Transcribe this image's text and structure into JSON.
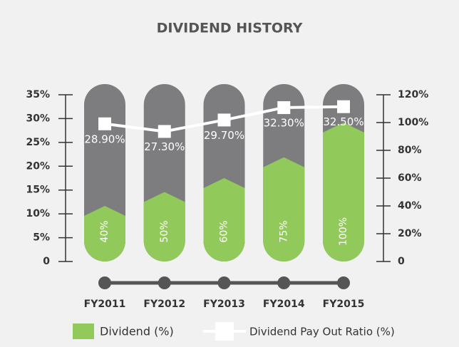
{
  "chart_data": {
    "type": "bar-line",
    "title": "DIVIDEND HISTORY",
    "categories": [
      "FY2011",
      "FY2012",
      "FY2013",
      "FY2014",
      "FY2015"
    ],
    "series": [
      {
        "name": "Dividend (%)",
        "type": "bar",
        "axis": "y2",
        "color": "#92c95b",
        "values": [
          40,
          50,
          60,
          75,
          100
        ],
        "value_labels": [
          "40%",
          "50%",
          "60%",
          "75%",
          "100%"
        ]
      },
      {
        "name": "Dividend Pay Out Ratio (%)",
        "type": "line",
        "axis": "y",
        "color": "#ffffff",
        "values": [
          28.9,
          27.3,
          29.7,
          32.3,
          32.5
        ],
        "value_labels": [
          "28.90%",
          "27.30%",
          "29.70%",
          "32.30%",
          "32.50%"
        ]
      }
    ],
    "ylim": [
      0,
      35
    ],
    "yticks": [
      0,
      {
        "value": 5,
        "label": "5%"
      },
      {
        "value": 10,
        "label": "10%"
      },
      {
        "value": 15,
        "label": "15%"
      },
      {
        "value": 20,
        "label": "20%"
      },
      {
        "value": 25,
        "label": "25%"
      },
      {
        "value": 30,
        "label": "30%"
      },
      {
        "value": 35,
        "label": "35%"
      }
    ],
    "y2lim": [
      0,
      120
    ],
    "y2ticks": [
      0,
      {
        "value": 20,
        "label": "20%"
      },
      {
        "value": 40,
        "label": "40%"
      },
      {
        "value": 60,
        "label": "60%"
      },
      {
        "value": 80,
        "label": "80%"
      },
      {
        "value": 100,
        "label": "100%"
      },
      {
        "value": 120,
        "label": "120%"
      }
    ]
  }
}
